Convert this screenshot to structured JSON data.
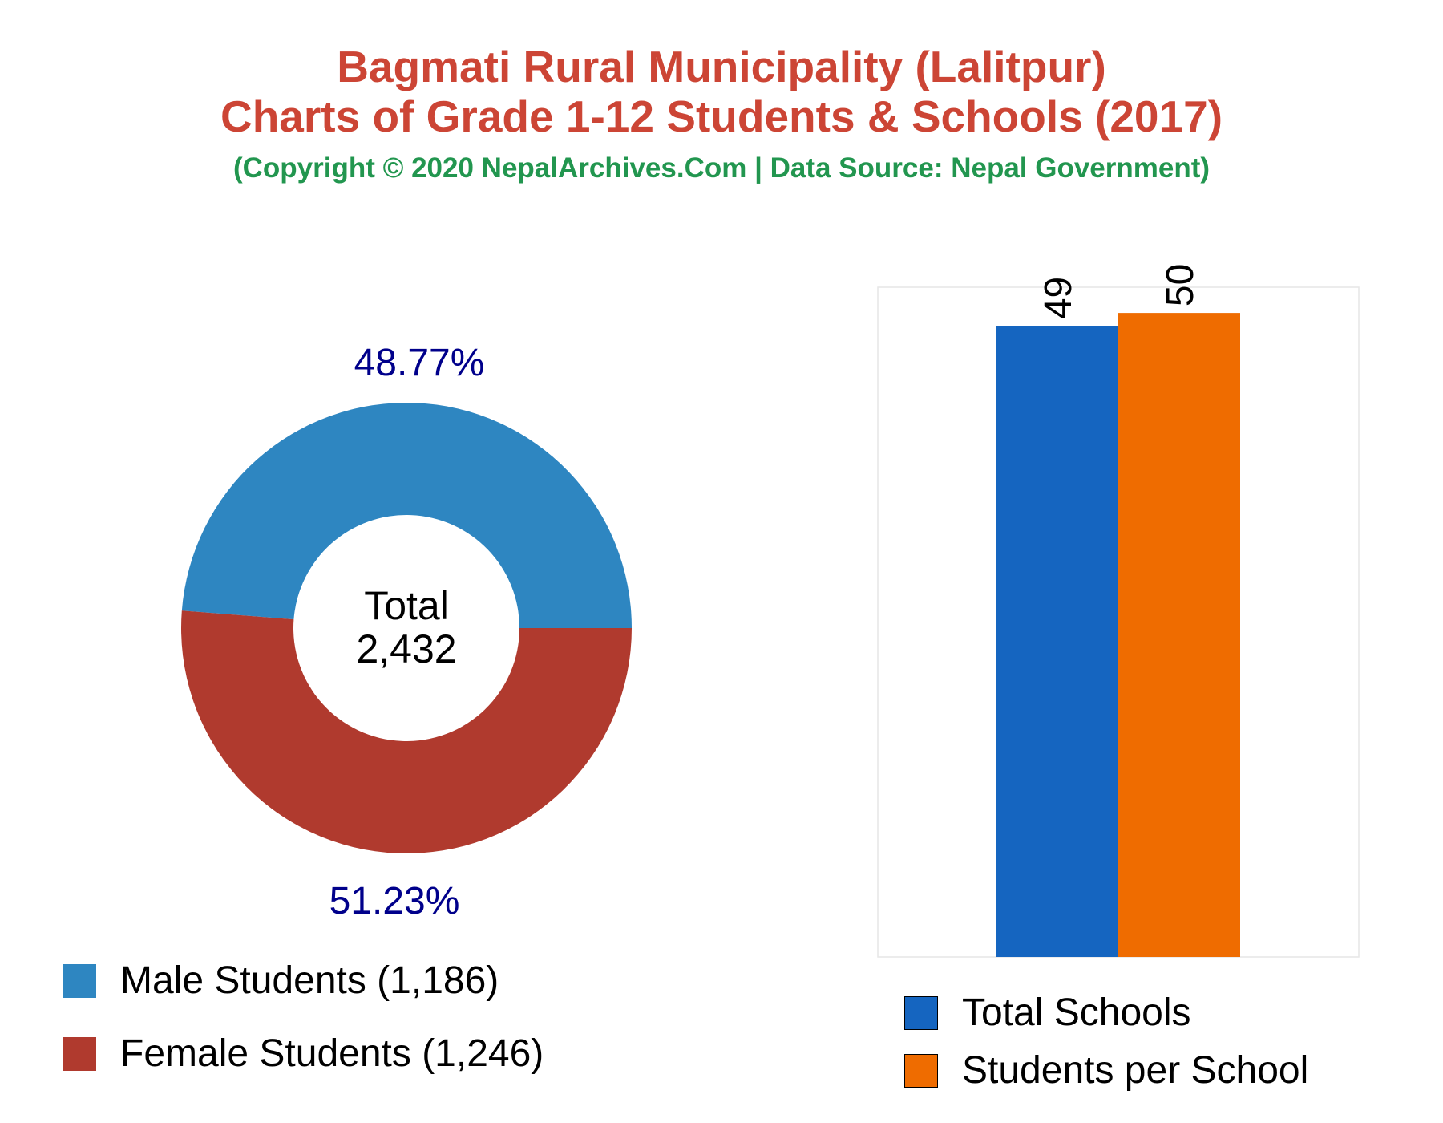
{
  "header": {
    "title_line1": "Bagmati Rural Municipality (Lalitpur)",
    "title_line2": "Charts of Grade 1-12 Students & Schools (2017)",
    "subtitle": "(Copyright © 2020 NepalArchives.Com | Data Source: Nepal Government)"
  },
  "colors": {
    "title": "#cc4535",
    "subtitle": "#22964f",
    "male": "#2e86c1",
    "female": "#b03a2e",
    "total_schools": "#1565c0",
    "students_per_school": "#ef6c00",
    "percent_label": "#00008b"
  },
  "chart_data": [
    {
      "type": "pie",
      "donut": true,
      "center_label": {
        "line1": "Total",
        "line2": "2,432"
      },
      "slices": [
        {
          "name": "Male Students",
          "value": 1186,
          "percent_label": "48.77%",
          "legend_label": "Male Students (1,186)",
          "color": "#2e86c1"
        },
        {
          "name": "Female Students",
          "value": 1246,
          "percent_label": "51.23%",
          "legend_label": "Female Students (1,246)",
          "color": "#b03a2e"
        }
      ]
    },
    {
      "type": "bar",
      "categories": [
        "Total Schools",
        "Students per School"
      ],
      "values": [
        49,
        50
      ],
      "value_labels": [
        "49",
        "50"
      ],
      "colors": [
        "#1565c0",
        "#ef6c00"
      ],
      "ylim": [
        0,
        52
      ],
      "grid": false,
      "legend_position": "bottom"
    }
  ]
}
